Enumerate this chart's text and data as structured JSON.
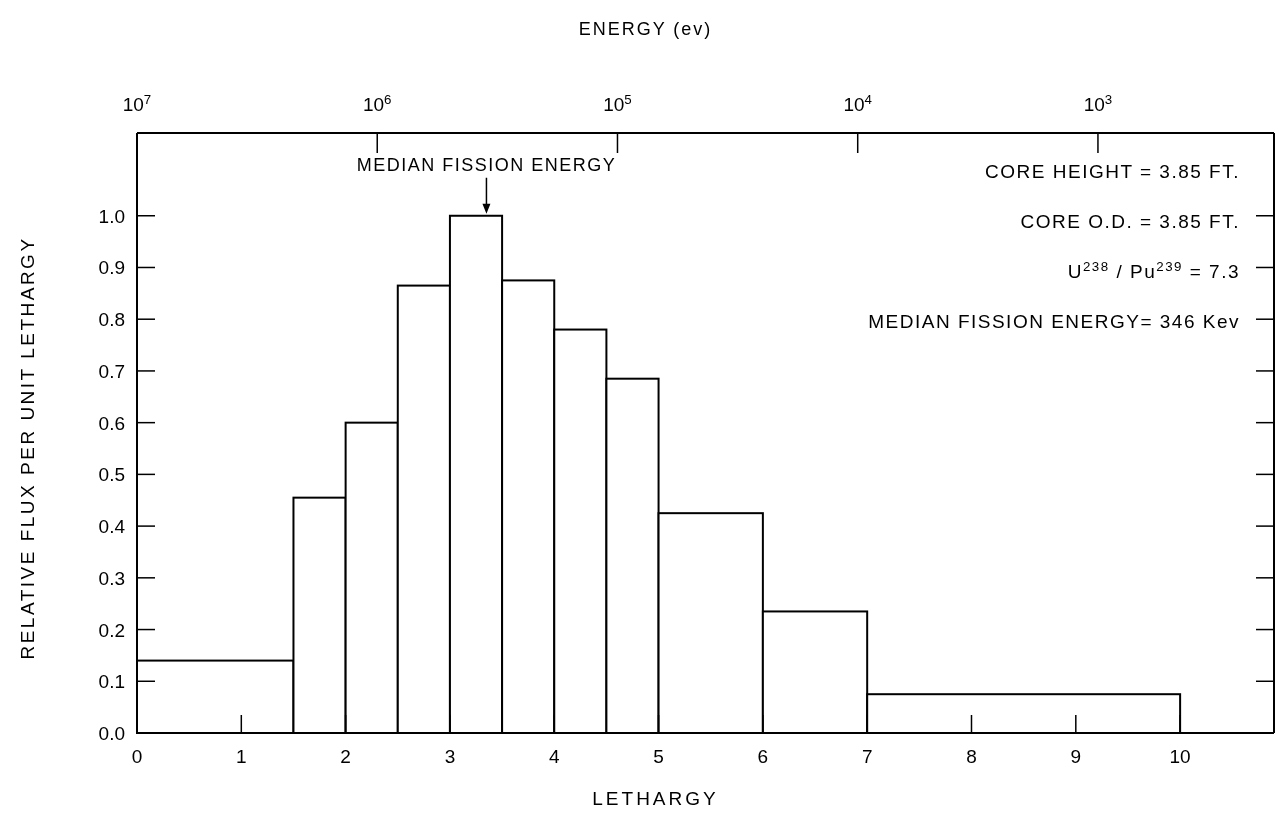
{
  "chart_data": {
    "type": "histogram",
    "xlabel": "LETHARGY",
    "ylabel": "RELATIVE FLUX PER UNIT LETHARGY",
    "x2label": "ENERGY (ev)",
    "bins": [
      0,
      1.5,
      2,
      2.5,
      3,
      3.5,
      4,
      4.5,
      5,
      6,
      7,
      10
    ],
    "values": [
      0.14,
      0.455,
      0.6,
      0.865,
      1.0,
      0.875,
      0.78,
      0.685,
      0.425,
      0.235,
      0.075
    ],
    "color": "#ffffff",
    "xlim": [
      0,
      10.9
    ],
    "xticks": [
      0,
      1,
      2,
      3,
      4,
      5,
      6,
      7,
      8,
      9,
      10
    ],
    "ylim": [
      0,
      1.16
    ],
    "yticks": [
      {
        "value": 0,
        "label": "0.0"
      },
      0.1,
      0.2,
      0.3,
      0.4,
      0.5,
      0.6,
      0.7,
      0.8,
      0.9,
      {
        "value": 1,
        "label": "1.0"
      }
    ],
    "x2lim": [
      10000000,
      185
    ],
    "log": "x2",
    "x2ticks": [
      {
        "value": 10000000,
        "label": "10$^{7}$"
      },
      {
        "value": 1000000,
        "label": "10$^{6}$"
      },
      {
        "value": 100000,
        "label": "10$^{5}$"
      },
      {
        "value": 10000,
        "label": "10$^{4}$"
      },
      {
        "value": 1000,
        "label": "10$^{3}$"
      }
    ],
    "tick_labels": [
      "x",
      "y",
      "x2"
    ],
    "annotations": [
      {
        "text": "MEDIAN FISSION ENERGY",
        "x": 3.35,
        "y": 1.0
      },
      "CORE HEIGHT = 3.85 FT.",
      "CORE O.D. = 3.85 FT.",
      "U$^{238}$ / Pu$^{239}$ = 7.3",
      "MEDIAN FISSION ENERGY= 346 Kev"
    ]
  }
}
